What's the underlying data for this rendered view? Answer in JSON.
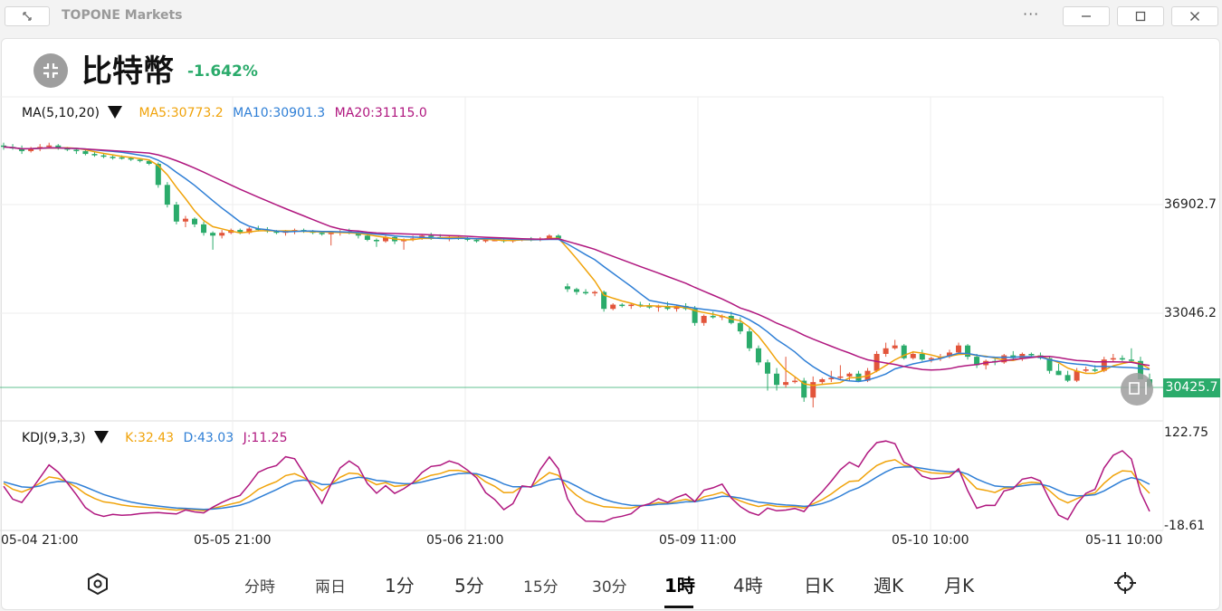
{
  "window": {
    "title": "TOPONE Markets"
  },
  "header": {
    "coin_name": "比特幣",
    "change": "-1.642%"
  },
  "ma_legend": {
    "label": "MA(5,10,20)",
    "ma5": "MA5:30773.2",
    "ma10": "MA10:30901.3",
    "ma20": "MA20:31115.0"
  },
  "kdj_legend": {
    "label": "KDJ(9,3,3)",
    "k": "K:32.43",
    "d": "D:43.03",
    "j": "J:11.25"
  },
  "price_axis": {
    "tick_1": "36902.7",
    "tick_2": "33046.2",
    "current": "30425.7"
  },
  "kdj_axis": {
    "top": "122.75",
    "bottom": "-18.61"
  },
  "time_axis": {
    "t1": "05-04 21:00",
    "t2": "05-05 21:00",
    "t3": "05-06 21:00",
    "t4": "05-09 11:00",
    "t5": "05-10 10:00",
    "t6": "05-11 10:00"
  },
  "tabs": {
    "t_fenshi": "分時",
    "t_liangri": "兩日",
    "t_1m": "1分",
    "t_5m": "5分",
    "t_15m": "15分",
    "t_30m": "30分",
    "t_1h": "1時",
    "t_4h": "4時",
    "t_day": "日K",
    "t_week": "週K",
    "t_month": "月K"
  },
  "colors": {
    "up": "#e2553b",
    "down": "#2bab6b",
    "ma5": "#f0a30a",
    "ma10": "#2f7fd6",
    "ma20": "#b0177f",
    "k": "#f0a30a",
    "d": "#2f7fd6",
    "j": "#b0177f"
  },
  "chart_data": {
    "type": "candlestick",
    "price_axis_ticks": [
      36902.7,
      33046.2
    ],
    "current_price": 30425.7,
    "kdj_axis": [
      122.75,
      -18.61
    ],
    "x_labels": [
      "05-04 21:00",
      "05-05 21:00",
      "05-06 21:00",
      "05-09 11:00",
      "05-10 10:00",
      "05-11 10:00"
    ],
    "candles_ohlc": [
      [
        39000,
        39100,
        38850,
        38950
      ],
      [
        38950,
        39050,
        38850,
        38900
      ],
      [
        38900,
        39000,
        38700,
        38800
      ],
      [
        38800,
        38950,
        38750,
        38900
      ],
      [
        38900,
        39050,
        38800,
        38950
      ],
      [
        38950,
        39100,
        38900,
        39000
      ],
      [
        39000,
        39050,
        38850,
        38900
      ],
      [
        38900,
        38950,
        38800,
        38850
      ],
      [
        38850,
        38900,
        38700,
        38800
      ],
      [
        38800,
        38850,
        38650,
        38700
      ],
      [
        38700,
        38800,
        38600,
        38650
      ],
      [
        38650,
        38700,
        38550,
        38600
      ],
      [
        38600,
        38650,
        38500,
        38580
      ],
      [
        38580,
        38650,
        38500,
        38550
      ],
      [
        38550,
        38600,
        38450,
        38500
      ],
      [
        38500,
        38550,
        38400,
        38450
      ],
      [
        38450,
        38500,
        38300,
        38350
      ],
      [
        38350,
        38400,
        37500,
        37600
      ],
      [
        37600,
        37700,
        36800,
        36900
      ],
      [
        36900,
        37000,
        36200,
        36300
      ],
      [
        36300,
        36500,
        36100,
        36400
      ],
      [
        36400,
        36450,
        36100,
        36200
      ],
      [
        36200,
        36300,
        35800,
        35900
      ],
      [
        35900,
        35950,
        35300,
        35800
      ],
      [
        35800,
        36000,
        35700,
        35900
      ],
      [
        35900,
        36050,
        35850,
        36000
      ],
      [
        36000,
        36050,
        35850,
        35900
      ],
      [
        35900,
        36100,
        35850,
        36050
      ],
      [
        36050,
        36150,
        35950,
        36000
      ],
      [
        36000,
        36100,
        35900,
        35950
      ],
      [
        35950,
        36000,
        35850,
        35900
      ],
      [
        35900,
        36000,
        35800,
        35950
      ],
      [
        35950,
        36050,
        35850,
        36000
      ],
      [
        36000,
        36050,
        35900,
        35950
      ],
      [
        35950,
        36000,
        35850,
        35900
      ],
      [
        35900,
        35950,
        35800,
        35850
      ],
      [
        35850,
        35950,
        35450,
        35900
      ],
      [
        35900,
        36000,
        35800,
        35950
      ],
      [
        35950,
        36050,
        35850,
        35900
      ],
      [
        35900,
        35950,
        35700,
        35800
      ],
      [
        35800,
        35850,
        35600,
        35650
      ],
      [
        35650,
        35700,
        35400,
        35600
      ],
      [
        35600,
        35800,
        35550,
        35750
      ],
      [
        35750,
        35800,
        35500,
        35600
      ],
      [
        35600,
        35700,
        35300,
        35650
      ],
      [
        35650,
        35800,
        35600,
        35700
      ],
      [
        35700,
        35850,
        35650,
        35800
      ],
      [
        35800,
        35900,
        35650,
        35750
      ],
      [
        35750,
        35850,
        35700,
        35700
      ],
      [
        35700,
        35800,
        35600,
        35750
      ],
      [
        35750,
        35800,
        35650,
        35700
      ],
      [
        35700,
        35750,
        35600,
        35650
      ],
      [
        35650,
        35700,
        35550,
        35600
      ],
      [
        35600,
        35700,
        35550,
        35650
      ],
      [
        35650,
        35700,
        35600,
        35650
      ],
      [
        35650,
        35700,
        35550,
        35600
      ],
      [
        35600,
        35650,
        35550,
        35650
      ],
      [
        35650,
        35700,
        35600,
        35700
      ],
      [
        35700,
        35750,
        35600,
        35650
      ],
      [
        35650,
        35750,
        35600,
        35700
      ],
      [
        35700,
        35850,
        35650,
        35800
      ],
      [
        35800,
        35850,
        35700,
        35700
      ],
      [
        34000,
        34100,
        33800,
        33900
      ],
      [
        33900,
        33950,
        33700,
        33800
      ],
      [
        33800,
        33900,
        33700,
        33750
      ],
      [
        33750,
        33850,
        33650,
        33800
      ],
      [
        33800,
        33850,
        33100,
        33200
      ],
      [
        33200,
        33400,
        33150,
        33350
      ],
      [
        33350,
        33400,
        33250,
        33300
      ],
      [
        33300,
        33400,
        33200,
        33350
      ],
      [
        33350,
        33450,
        33250,
        33300
      ],
      [
        33300,
        33400,
        33200,
        33250
      ],
      [
        33250,
        33350,
        33100,
        33300
      ],
      [
        33300,
        33450,
        33150,
        33200
      ],
      [
        33200,
        33350,
        33100,
        33300
      ],
      [
        33300,
        33400,
        33150,
        33200
      ],
      [
        33200,
        33300,
        32600,
        32700
      ],
      [
        32700,
        33000,
        32600,
        32950
      ],
      [
        32950,
        33100,
        32850,
        32900
      ],
      [
        32900,
        33000,
        32800,
        32950
      ],
      [
        32950,
        33100,
        32650,
        32700
      ],
      [
        32700,
        32900,
        32300,
        32400
      ],
      [
        32400,
        32550,
        31700,
        31800
      ],
      [
        31800,
        31900,
        31200,
        31300
      ],
      [
        31300,
        31400,
        30300,
        30900
      ],
      [
        30900,
        31100,
        30300,
        30500
      ],
      [
        30500,
        31500,
        30400,
        30600
      ],
      [
        30600,
        30800,
        30550,
        30650
      ],
      [
        30650,
        30750,
        29900,
        30050
      ],
      [
        30050,
        30800,
        29700,
        30600
      ],
      [
        30600,
        30750,
        30500,
        30700
      ],
      [
        30700,
        31000,
        30600,
        30750
      ],
      [
        30750,
        31200,
        30700,
        30800
      ],
      [
        30800,
        30950,
        30650,
        30900
      ],
      [
        30900,
        31000,
        30600,
        30650
      ],
      [
        30650,
        31100,
        30600,
        31000
      ],
      [
        31000,
        31700,
        30950,
        31600
      ],
      [
        31600,
        32000,
        31500,
        31800
      ],
      [
        31800,
        32100,
        31750,
        31900
      ],
      [
        31900,
        31950,
        31400,
        31450
      ],
      [
        31450,
        31700,
        31400,
        31600
      ],
      [
        31600,
        31750,
        31350,
        31400
      ],
      [
        31400,
        31500,
        31300,
        31450
      ],
      [
        31450,
        31600,
        31350,
        31500
      ],
      [
        31500,
        31750,
        31450,
        31650
      ],
      [
        31650,
        32000,
        31600,
        31900
      ],
      [
        31900,
        31950,
        31400,
        31500
      ],
      [
        31500,
        31600,
        31100,
        31200
      ],
      [
        31200,
        31400,
        31050,
        31350
      ],
      [
        31350,
        31500,
        31200,
        31300
      ],
      [
        31300,
        31600,
        31250,
        31550
      ],
      [
        31550,
        31700,
        31400,
        31450
      ],
      [
        31450,
        31650,
        31350,
        31600
      ],
      [
        31600,
        31650,
        31500,
        31550
      ],
      [
        31550,
        31650,
        31400,
        31450
      ],
      [
        31450,
        31500,
        30900,
        31000
      ],
      [
        31000,
        31250,
        30850,
        30850
      ],
      [
        30850,
        31000,
        30600,
        30650
      ],
      [
        30650,
        31100,
        30600,
        31000
      ],
      [
        31000,
        31150,
        30950,
        31050
      ],
      [
        31050,
        31200,
        30950,
        31000
      ],
      [
        31000,
        31500,
        30950,
        31400
      ],
      [
        31400,
        31600,
        31300,
        31450
      ],
      [
        31450,
        31550,
        31350,
        31400
      ],
      [
        31400,
        31800,
        31350,
        31350
      ],
      [
        31350,
        31500,
        30800,
        30700
      ],
      [
        30700,
        30900,
        30400,
        30450
      ]
    ]
  }
}
